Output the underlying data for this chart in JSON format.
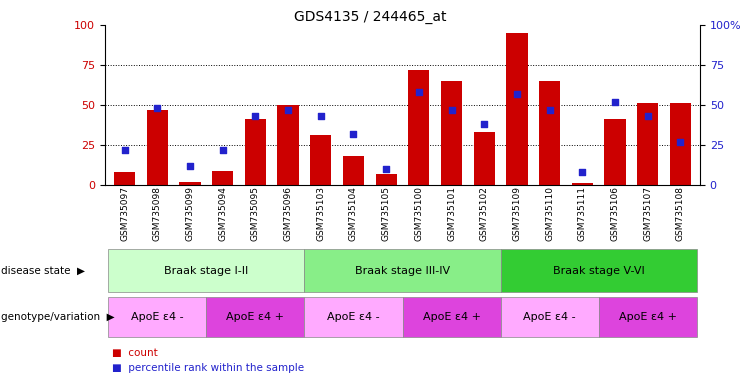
{
  "title": "GDS4135 / 244465_at",
  "samples": [
    "GSM735097",
    "GSM735098",
    "GSM735099",
    "GSM735094",
    "GSM735095",
    "GSM735096",
    "GSM735103",
    "GSM735104",
    "GSM735105",
    "GSM735100",
    "GSM735101",
    "GSM735102",
    "GSM735109",
    "GSM735110",
    "GSM735111",
    "GSM735106",
    "GSM735107",
    "GSM735108"
  ],
  "counts": [
    8,
    47,
    2,
    9,
    41,
    50,
    31,
    18,
    7,
    72,
    65,
    33,
    95,
    65,
    1,
    41,
    51,
    51
  ],
  "percentile_ranks": [
    22,
    48,
    12,
    22,
    43,
    47,
    43,
    32,
    10,
    58,
    47,
    38,
    57,
    47,
    8,
    52,
    43,
    27
  ],
  "bar_color": "#cc0000",
  "dot_color": "#2222cc",
  "ylim": [
    0,
    100
  ],
  "yticks_left": [
    0,
    25,
    50,
    75,
    100
  ],
  "yticks_right": [
    0,
    25,
    50,
    75,
    100
  ],
  "ytick_right_labels": [
    "0",
    "25",
    "50",
    "75",
    "100%"
  ],
  "gridlines": [
    25,
    50,
    75
  ],
  "disease_state_label": "disease state",
  "genotype_label": "genotype/variation",
  "disease_stages": [
    {
      "label": "Braak stage I-II",
      "start": 0,
      "end": 6,
      "color": "#ccffcc"
    },
    {
      "label": "Braak stage III-IV",
      "start": 6,
      "end": 12,
      "color": "#88ee88"
    },
    {
      "label": "Braak stage V-VI",
      "start": 12,
      "end": 18,
      "color": "#33cc33"
    }
  ],
  "genotype_groups": [
    {
      "label": "ApoE ε4 -",
      "start": 0,
      "end": 3,
      "color": "#ffaaff"
    },
    {
      "label": "ApoE ε4 +",
      "start": 3,
      "end": 6,
      "color": "#dd44dd"
    },
    {
      "label": "ApoE ε4 -",
      "start": 6,
      "end": 9,
      "color": "#ffaaff"
    },
    {
      "label": "ApoE ε4 +",
      "start": 9,
      "end": 12,
      "color": "#dd44dd"
    },
    {
      "label": "ApoE ε4 -",
      "start": 12,
      "end": 15,
      "color": "#ffaaff"
    },
    {
      "label": "ApoE ε4 +",
      "start": 15,
      "end": 18,
      "color": "#dd44dd"
    }
  ],
  "legend_count_label": "count",
  "legend_pct_label": "percentile rank within the sample",
  "left_axis_color": "#cc0000",
  "right_axis_color": "#2222cc",
  "background_color": "#ffffff"
}
